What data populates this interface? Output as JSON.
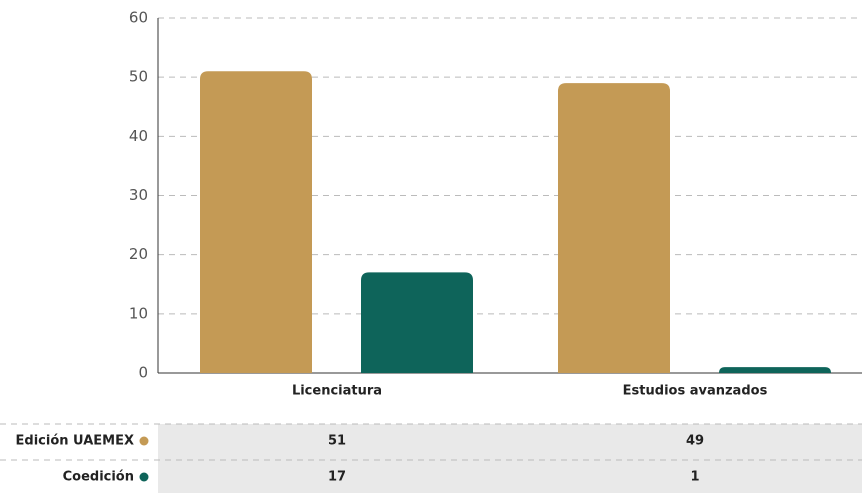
{
  "chart_data": {
    "type": "bar",
    "categories": [
      "Licenciatura",
      "Estudios avanzados"
    ],
    "series": [
      {
        "name": "Edición UAEMEX",
        "color": "#c49a55",
        "values": [
          51,
          49
        ]
      },
      {
        "name": "Coedición",
        "color": "#0e645a",
        "values": [
          17,
          1
        ]
      }
    ],
    "ylim": [
      0,
      60
    ],
    "yticks": [
      0,
      10,
      20,
      30,
      40,
      50,
      60
    ],
    "grid": true
  }
}
